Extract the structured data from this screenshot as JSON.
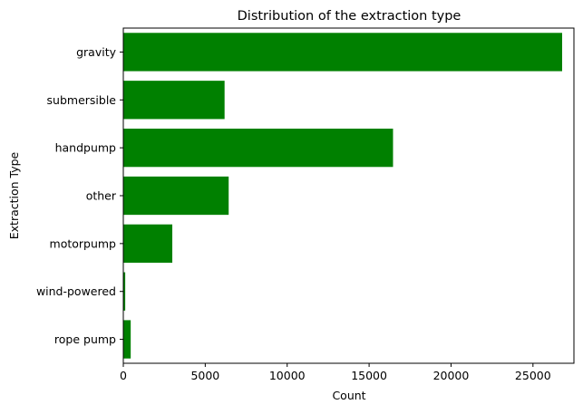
{
  "chart_data": {
    "type": "bar",
    "orientation": "horizontal",
    "title": "Distribution of the extraction type",
    "xlabel": "Count",
    "ylabel": "Extraction Type",
    "categories": [
      "gravity",
      "submersible",
      "handpump",
      "other",
      "motorpump",
      "wind-powered",
      "rope pump"
    ],
    "values": [
      26780,
      6180,
      16460,
      6430,
      2990,
      117,
      451
    ],
    "xlim": [
      0,
      27500
    ],
    "xticks": [
      0,
      5000,
      10000,
      15000,
      20000,
      25000
    ],
    "bar_color": "#008000",
    "grid": false,
    "legend": "none"
  }
}
